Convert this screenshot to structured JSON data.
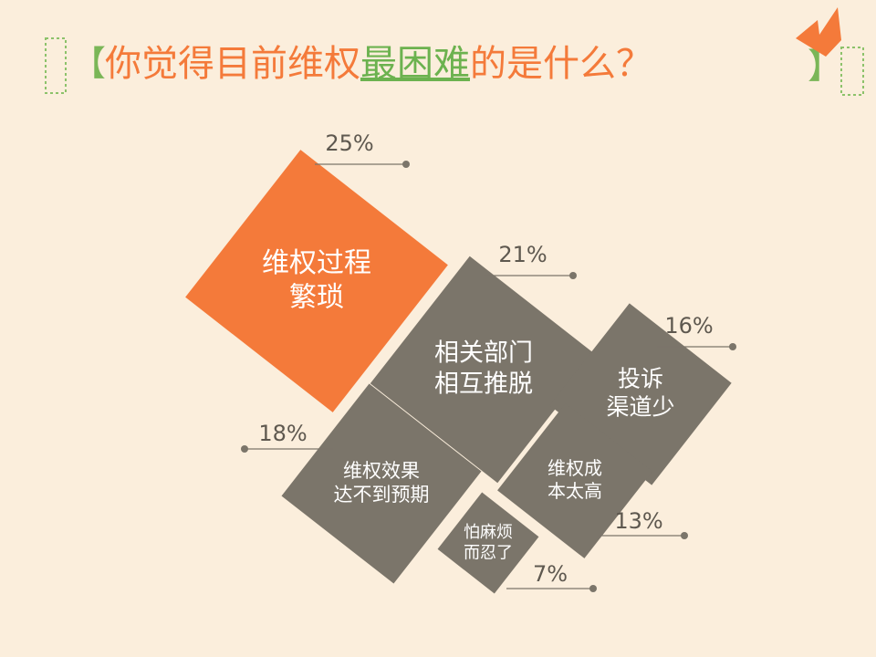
{
  "chart_data": {
    "type": "diamond",
    "title_parts": [
      "你觉得目前维权",
      "最困难",
      "的是什么？"
    ],
    "categories": [
      [
        "维权过程",
        "繁琐"
      ],
      [
        "相关部门",
        "相互推脱"
      ],
      [
        "投诉",
        "渠道少"
      ],
      [
        "维权效果",
        "达不到预期"
      ],
      [
        "维权成",
        "本太高"
      ],
      [
        "怕麻烦",
        "而忍了"
      ]
    ],
    "values": [
      25,
      21,
      16,
      18,
      13,
      7
    ],
    "value_labels": [
      "25%",
      "21%",
      "16%",
      "18%",
      "13%",
      "7%"
    ],
    "colors": [
      "#f47a3a",
      "#7b756a",
      "#7b756a",
      "#7b756a",
      "#7b756a",
      "#7b756a"
    ]
  }
}
